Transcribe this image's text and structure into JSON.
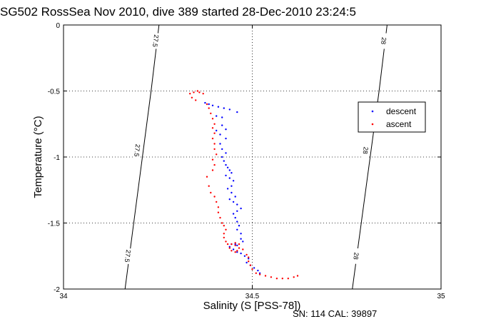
{
  "title": "SG502 RossSea Nov 2010, dive 389 started 28-Dec-2010 23:24:5",
  "footer": "SN: 114  CAL: 39897",
  "chart_data": {
    "type": "scatter",
    "xlabel": "Salinity (S [PSS-78])",
    "ylabel": "Temperature (°C)",
    "xlim": [
      34,
      35
    ],
    "ylim": [
      -2,
      0
    ],
    "x_ticks": [
      "34",
      "34.5",
      "35"
    ],
    "y_ticks": [
      "0",
      "-0.5",
      "-1",
      "-1.5",
      "-2"
    ],
    "grid": true,
    "legend_position": "right",
    "contours": [
      {
        "label": "27.5",
        "points": [
          [
            34.163,
            -2.0
          ],
          [
            34.232,
            -0.5
          ],
          [
            34.253,
            0.0
          ]
        ],
        "label_positions": [
          [
            34.17,
            -1.75
          ],
          [
            34.195,
            -0.95
          ],
          [
            34.244,
            -0.12
          ]
        ]
      },
      {
        "label": "28",
        "points": [
          [
            34.765,
            -2.0
          ],
          [
            34.836,
            -0.5
          ],
          [
            34.857,
            0.0
          ]
        ],
        "label_positions": [
          [
            34.775,
            -1.75
          ],
          [
            34.8,
            -0.95
          ],
          [
            34.848,
            -0.12
          ]
        ]
      }
    ],
    "series": [
      {
        "name": "descent",
        "color": "#0000ff",
        "points": [
          [
            34.375,
            -0.59
          ],
          [
            34.385,
            -0.6
          ],
          [
            34.395,
            -0.61
          ],
          [
            34.41,
            -0.62
          ],
          [
            34.425,
            -0.63
          ],
          [
            34.44,
            -0.64
          ],
          [
            34.46,
            -0.66
          ],
          [
            34.405,
            -0.69
          ],
          [
            34.42,
            -0.7
          ],
          [
            34.42,
            -0.76
          ],
          [
            34.43,
            -0.79
          ],
          [
            34.405,
            -0.8
          ],
          [
            34.415,
            -0.83
          ],
          [
            34.43,
            -0.86
          ],
          [
            34.415,
            -0.9
          ],
          [
            34.42,
            -0.94
          ],
          [
            34.43,
            -0.97
          ],
          [
            34.42,
            -1.0
          ],
          [
            34.425,
            -1.03
          ],
          [
            34.43,
            -1.06
          ],
          [
            34.435,
            -1.08
          ],
          [
            34.44,
            -1.1
          ],
          [
            34.445,
            -1.12
          ],
          [
            34.43,
            -1.14
          ],
          [
            34.44,
            -1.16
          ],
          [
            34.45,
            -1.18
          ],
          [
            34.445,
            -1.22
          ],
          [
            34.435,
            -1.24
          ],
          [
            34.445,
            -1.27
          ],
          [
            34.455,
            -1.3
          ],
          [
            34.44,
            -1.32
          ],
          [
            34.45,
            -1.34
          ],
          [
            34.46,
            -1.36
          ],
          [
            34.47,
            -1.39
          ],
          [
            34.46,
            -1.41
          ],
          [
            34.45,
            -1.43
          ],
          [
            34.455,
            -1.46
          ],
          [
            34.46,
            -1.49
          ],
          [
            34.465,
            -1.52
          ],
          [
            34.46,
            -1.55
          ],
          [
            34.47,
            -1.58
          ],
          [
            34.47,
            -1.62
          ],
          [
            34.475,
            -1.64
          ],
          [
            34.455,
            -1.66
          ],
          [
            34.46,
            -1.67
          ],
          [
            34.445,
            -1.66
          ],
          [
            34.44,
            -1.68
          ],
          [
            34.45,
            -1.7
          ],
          [
            34.46,
            -1.72
          ],
          [
            34.47,
            -1.73
          ],
          [
            34.48,
            -1.75
          ],
          [
            34.49,
            -1.77
          ],
          [
            34.485,
            -1.8
          ],
          [
            34.495,
            -1.82
          ],
          [
            34.505,
            -1.84
          ],
          [
            34.515,
            -1.86
          ],
          [
            34.52,
            -1.88
          ]
        ]
      },
      {
        "name": "ascent",
        "color": "#ff0000",
        "points": [
          [
            34.335,
            -0.52
          ],
          [
            34.345,
            -0.51
          ],
          [
            34.355,
            -0.5
          ],
          [
            34.36,
            -0.51
          ],
          [
            34.37,
            -0.52
          ],
          [
            34.34,
            -0.55
          ],
          [
            34.35,
            -0.57
          ],
          [
            34.38,
            -0.6
          ],
          [
            34.385,
            -0.63
          ],
          [
            34.39,
            -0.67
          ],
          [
            34.395,
            -0.71
          ],
          [
            34.4,
            -0.75
          ],
          [
            34.395,
            -0.78
          ],
          [
            34.4,
            -0.82
          ],
          [
            34.395,
            -0.86
          ],
          [
            34.4,
            -0.9
          ],
          [
            34.4,
            -0.94
          ],
          [
            34.405,
            -0.98
          ],
          [
            34.395,
            -1.02
          ],
          [
            34.4,
            -1.06
          ],
          [
            34.395,
            -1.1
          ],
          [
            34.38,
            -1.15
          ],
          [
            34.385,
            -1.22
          ],
          [
            34.39,
            -1.27
          ],
          [
            34.4,
            -1.3
          ],
          [
            34.405,
            -1.34
          ],
          [
            34.41,
            -1.38
          ],
          [
            34.41,
            -1.42
          ],
          [
            34.415,
            -1.46
          ],
          [
            34.42,
            -1.5
          ],
          [
            34.425,
            -1.52
          ],
          [
            34.43,
            -1.55
          ],
          [
            34.425,
            -1.58
          ],
          [
            34.425,
            -1.61
          ],
          [
            34.43,
            -1.64
          ],
          [
            34.435,
            -1.66
          ],
          [
            34.44,
            -1.69
          ],
          [
            34.445,
            -1.71
          ],
          [
            34.455,
            -1.72
          ],
          [
            34.46,
            -1.71
          ],
          [
            34.465,
            -1.69
          ],
          [
            34.455,
            -1.67
          ],
          [
            34.445,
            -1.66
          ],
          [
            34.455,
            -1.65
          ],
          [
            34.465,
            -1.66
          ],
          [
            34.475,
            -1.7
          ],
          [
            34.485,
            -1.74
          ],
          [
            34.49,
            -1.76
          ],
          [
            34.49,
            -1.79
          ],
          [
            34.495,
            -1.82
          ],
          [
            34.5,
            -1.85
          ],
          [
            34.51,
            -1.88
          ],
          [
            34.52,
            -1.89
          ],
          [
            34.535,
            -1.9
          ],
          [
            34.55,
            -1.91
          ],
          [
            34.565,
            -1.92
          ],
          [
            34.58,
            -1.92
          ],
          [
            34.595,
            -1.92
          ],
          [
            34.61,
            -1.91
          ],
          [
            34.62,
            -1.9
          ]
        ]
      }
    ]
  }
}
